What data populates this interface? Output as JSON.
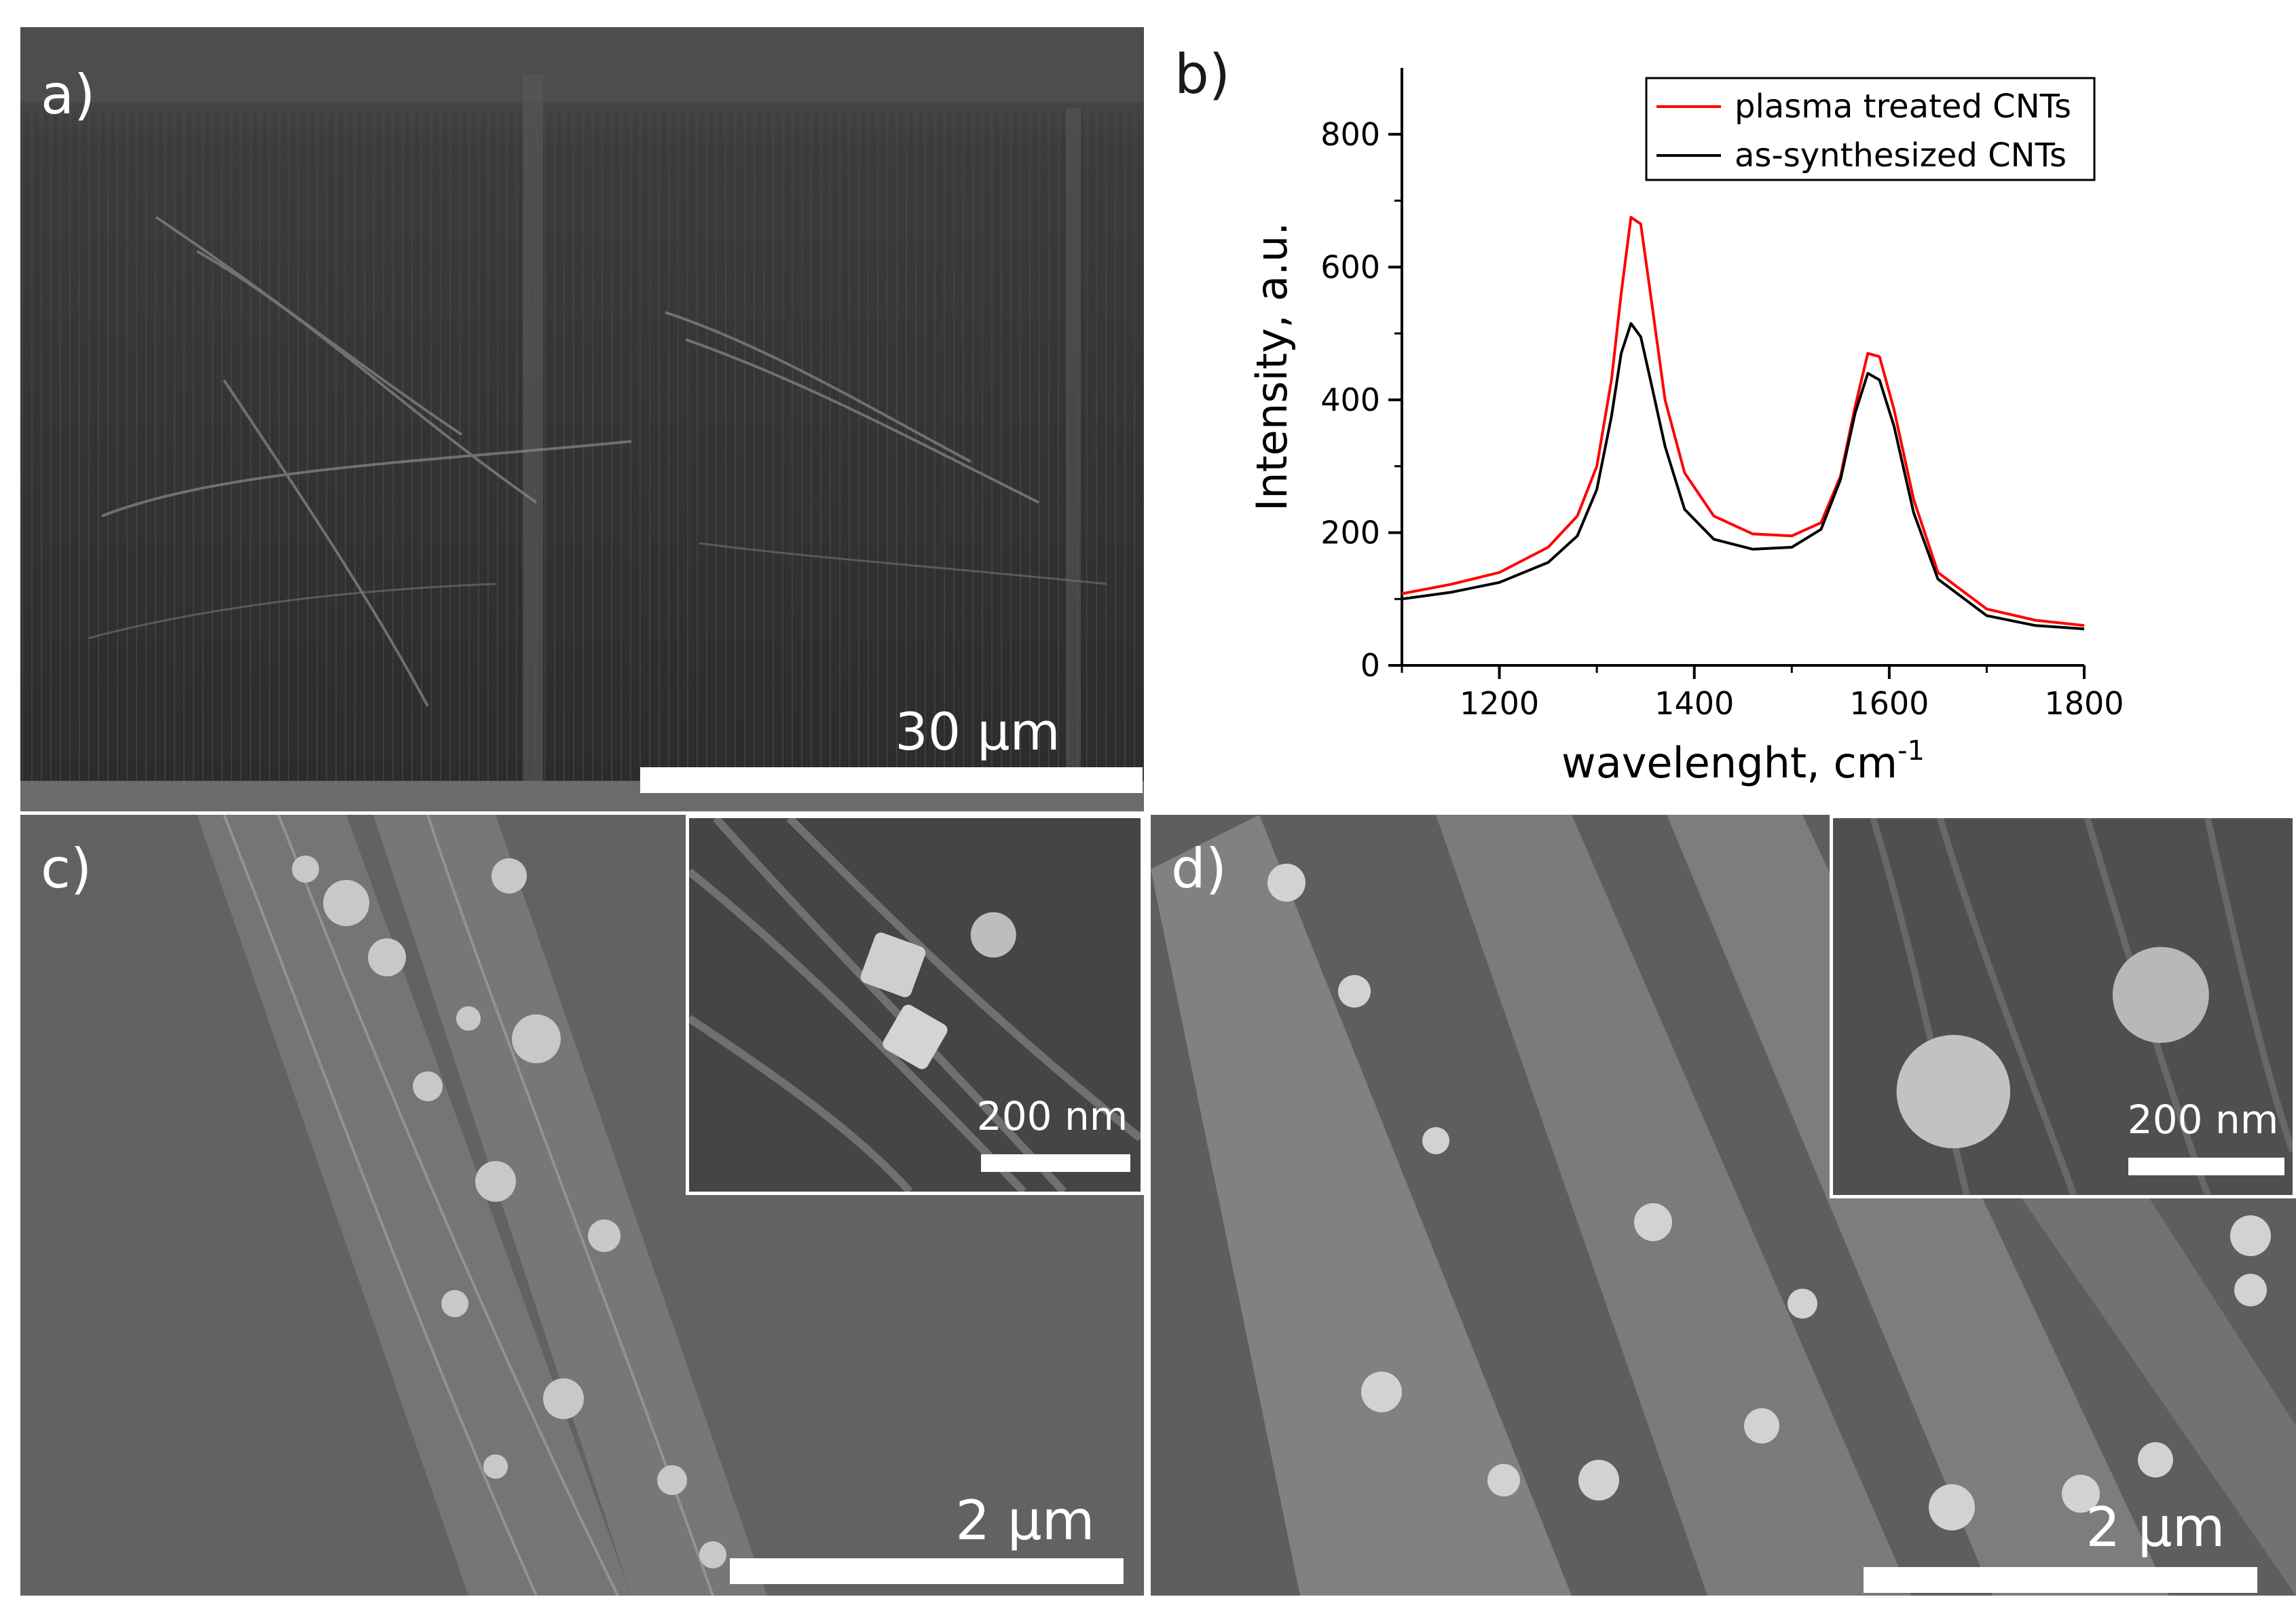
{
  "panels": {
    "a": {
      "label": "a)",
      "scale": "30 μm"
    },
    "b": {
      "label": "b)"
    },
    "c": {
      "label": "c)",
      "scale": "2 μm",
      "inset_scale": "200 nm"
    },
    "d": {
      "label": "d)",
      "scale": "2 μm",
      "inset_scale": "200 nm"
    }
  },
  "colors": {
    "plasma": "#ff0000",
    "as_synth": "#000000",
    "sem_dark": "#3a3a3a",
    "sem_gray": "#5c5c5c"
  },
  "chart_data": {
    "type": "line",
    "xlabel": "wavelenght, cm",
    "xlabel_sup": "-1",
    "ylabel": "Intensity, a.u.",
    "xlim": [
      1100,
      1800
    ],
    "ylim": [
      0,
      900
    ],
    "xticks": [
      1200,
      1400,
      1600,
      1800
    ],
    "yticks": [
      0,
      200,
      400,
      600,
      800
    ],
    "grid": false,
    "legend_position": "top-right",
    "series": [
      {
        "name": "plasma treated CNTs",
        "color": "#ff0000",
        "x": [
          1100,
          1150,
          1200,
          1250,
          1280,
          1300,
          1315,
          1325,
          1335,
          1345,
          1355,
          1370,
          1390,
          1420,
          1460,
          1500,
          1530,
          1550,
          1565,
          1578,
          1590,
          1605,
          1625,
          1650,
          1700,
          1750,
          1800
        ],
        "y": [
          108,
          122,
          140,
          178,
          225,
          300,
          430,
          560,
          675,
          665,
          560,
          400,
          290,
          225,
          198,
          195,
          215,
          285,
          390,
          470,
          465,
          385,
          250,
          140,
          85,
          68,
          60
        ]
      },
      {
        "name": "as-synthesized CNTs",
        "color": "#000000",
        "x": [
          1100,
          1150,
          1200,
          1250,
          1280,
          1300,
          1315,
          1325,
          1335,
          1345,
          1355,
          1370,
          1390,
          1420,
          1460,
          1500,
          1530,
          1550,
          1565,
          1578,
          1590,
          1605,
          1625,
          1650,
          1700,
          1750,
          1800
        ],
        "y": [
          100,
          110,
          125,
          155,
          195,
          265,
          375,
          470,
          515,
          495,
          430,
          330,
          235,
          190,
          175,
          178,
          205,
          280,
          380,
          440,
          430,
          360,
          230,
          130,
          75,
          60,
          55
        ]
      }
    ]
  }
}
